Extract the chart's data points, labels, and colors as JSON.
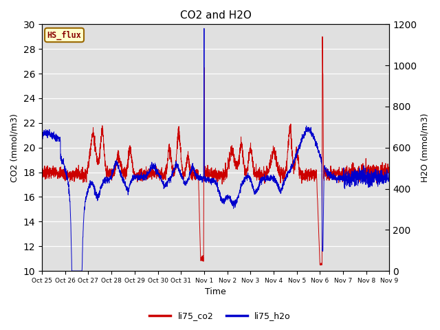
{
  "title": "CO2 and H2O",
  "xlabel": "Time",
  "ylabel_left": "CO2 (mmol/m3)",
  "ylabel_right": "H2O (mmol/m3)",
  "ylim_left": [
    10,
    30
  ],
  "ylim_right": [
    0,
    1200
  ],
  "yticks_left": [
    10,
    12,
    14,
    16,
    18,
    20,
    22,
    24,
    26,
    28,
    30
  ],
  "yticks_right": [
    0,
    200,
    400,
    600,
    800,
    1000,
    1200
  ],
  "bg_color": "#e0e0e0",
  "line_co2_color": "#cc0000",
  "line_h2o_color": "#0000cc",
  "hs_flux_bg": "#ffffcc",
  "hs_flux_border": "#996600",
  "hs_flux_text": "#880000",
  "legend_co2": "li75_co2",
  "legend_h2o": "li75_h2o",
  "xtick_labels": [
    "Oct 25",
    "Oct 26",
    "Oct 27",
    "Oct 28",
    "Oct 29",
    "Oct 30",
    "Oct 31",
    "Nov 1",
    "Nov 2",
    "Nov 3",
    "Nov 4",
    "Nov 5",
    "Nov 6",
    "Nov 7",
    "Nov 8",
    "Nov 9"
  ],
  "n_days": 15,
  "n_points": 3000
}
